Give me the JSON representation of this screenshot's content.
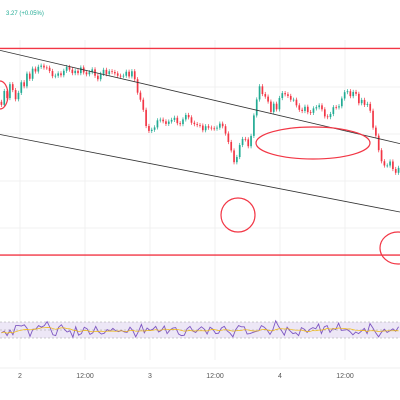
{
  "ticker": {
    "change_text": "3.27 (+0.05%)"
  },
  "colors": {
    "up": "#22ab94",
    "down": "#f23645",
    "channel": "#333333",
    "annotation": "#f23645",
    "rsi_line": "#7e57c2",
    "rsi_band": "#ede7f6",
    "rsi_ma": "#f0b90b",
    "grid": "#f0f0f0"
  },
  "chart_data": [
    {
      "type": "candlestick",
      "title": "",
      "x_tick_labels": [
        "2",
        "12:00",
        "3",
        "12:00",
        "4",
        "12:00"
      ],
      "ylim": [
        0,
        100
      ],
      "y_scale_note": "price axis not visible; values on relative 0-100 scale",
      "candles": [
        [
          73.7,
          72.4
        ],
        [
          72.4,
          78.3
        ],
        [
          78.3,
          75.3
        ],
        [
          75.3,
          81.2
        ],
        [
          81.2,
          78.7
        ],
        [
          78.7,
          74.8
        ],
        [
          74.8,
          77.5
        ],
        [
          77.5,
          82.0
        ],
        [
          82.0,
          80.3
        ],
        [
          80.3,
          85.7
        ],
        [
          85.7,
          83.5
        ],
        [
          83.5,
          87.8
        ],
        [
          87.8,
          86.6
        ],
        [
          86.6,
          88.6
        ],
        [
          88.6,
          89.1
        ],
        [
          89.1,
          88.3
        ],
        [
          88.3,
          88.2
        ],
        [
          88.2,
          86.8
        ],
        [
          86.8,
          84.6
        ],
        [
          84.6,
          84.8
        ],
        [
          84.8,
          85.8
        ],
        [
          85.8,
          85.0
        ],
        [
          85.0,
          86.9
        ],
        [
          86.9,
          88.5
        ],
        [
          88.5,
          87.4
        ],
        [
          87.4,
          85.9
        ],
        [
          85.9,
          86.9
        ],
        [
          86.9,
          85.9
        ],
        [
          85.9,
          88.3
        ],
        [
          88.3,
          86.2
        ],
        [
          86.2,
          85.4
        ],
        [
          85.4,
          86.3
        ],
        [
          86.3,
          87.5
        ],
        [
          87.5,
          84.8
        ],
        [
          84.8,
          83.3
        ],
        [
          83.3,
          85.6
        ],
        [
          85.6,
          87.3
        ],
        [
          87.3,
          85.5
        ],
        [
          85.5,
          86.7
        ],
        [
          86.7,
          86.4
        ],
        [
          86.4,
          85.8
        ],
        [
          85.8,
          84.8
        ],
        [
          84.8,
          84.7
        ],
        [
          84.7,
          84.8
        ],
        [
          84.8,
          86.5
        ],
        [
          86.5,
          84.5
        ],
        [
          84.5,
          86.7
        ],
        [
          86.7,
          83.3
        ],
        [
          83.3,
          77.6
        ],
        [
          77.6,
          74.6
        ],
        [
          74.6,
          70.3
        ],
        [
          70.3,
          63.4
        ],
        [
          63.4,
          61.3
        ],
        [
          61.3,
          61.8
        ],
        [
          61.8,
          62.8
        ],
        [
          62.8,
          65.8
        ],
        [
          65.8,
          66.1
        ],
        [
          66.1,
          65.4
        ],
        [
          65.4,
          64.3
        ],
        [
          64.3,
          65.3
        ],
        [
          65.3,
          66.0
        ],
        [
          66.0,
          66.9
        ],
        [
          66.9,
          64.6
        ],
        [
          64.6,
          64.2
        ],
        [
          64.2,
          66.2
        ],
        [
          66.2,
          68.1
        ],
        [
          68.1,
          67.1
        ],
        [
          67.1,
          64.8
        ],
        [
          64.8,
          64.2
        ],
        [
          64.2,
          63.8
        ],
        [
          63.8,
          63.6
        ],
        [
          63.6,
          61.6
        ],
        [
          61.6,
          63.3
        ],
        [
          63.3,
          62.7
        ],
        [
          62.7,
          62.4
        ],
        [
          62.4,
          62.3
        ],
        [
          62.3,
          62.7
        ],
        [
          62.7,
          64.4
        ],
        [
          64.4,
          63.3
        ],
        [
          63.3,
          60.2
        ],
        [
          60.2,
          56.6
        ],
        [
          56.6,
          53.0
        ],
        [
          53.0,
          48.0
        ],
        [
          48.0,
          50.2
        ],
        [
          50.2,
          55.3
        ],
        [
          55.3,
          57.9
        ],
        [
          57.9,
          57.7
        ],
        [
          57.7,
          54.8
        ],
        [
          54.8,
          59.2
        ],
        [
          59.2,
          67.9
        ],
        [
          67.9,
          74.7
        ],
        [
          74.7,
          80.3
        ],
        [
          80.3,
          77.0
        ],
        [
          77.0,
          75.9
        ],
        [
          75.9,
          73.8
        ],
        [
          73.8,
          69.4
        ],
        [
          69.4,
          72.9
        ],
        [
          72.9,
          70.5
        ],
        [
          70.5,
          75.3
        ],
        [
          75.3,
          77.4
        ],
        [
          77.4,
          76.9
        ],
        [
          76.9,
          76.2
        ],
        [
          76.2,
          74.6
        ],
        [
          74.6,
          74.6
        ],
        [
          74.6,
          72.2
        ],
        [
          72.2,
          70.3
        ],
        [
          70.3,
          69.8
        ],
        [
          69.8,
          71.6
        ],
        [
          71.6,
          69.3
        ],
        [
          69.3,
          69.0
        ],
        [
          69.0,
          70.9
        ],
        [
          70.9,
          71.4
        ],
        [
          71.4,
          72.2
        ],
        [
          72.2,
          70.5
        ],
        [
          70.5,
          67.5
        ],
        [
          67.5,
          67.2
        ],
        [
          67.2,
          68.5
        ],
        [
          68.5,
          71.4
        ],
        [
          71.4,
          71.3
        ],
        [
          71.3,
          71.8
        ],
        [
          71.8,
          75.1
        ],
        [
          75.1,
          77.8
        ],
        [
          77.8,
          78.2
        ],
        [
          78.2,
          76.1
        ],
        [
          76.1,
          77.9
        ],
        [
          77.9,
          77.1
        ],
        [
          77.1,
          73.1
        ],
        [
          73.1,
          74.5
        ],
        [
          74.5,
          72.4
        ],
        [
          72.4,
          72.8
        ],
        [
          72.8,
          69.9
        ],
        [
          69.9,
          62.7
        ],
        [
          62.7,
          59.3
        ],
        [
          59.3,
          53.1
        ],
        [
          53.1,
          48.4
        ],
        [
          48.4,
          46.6
        ],
        [
          46.6,
          46.6
        ],
        [
          46.6,
          48.3
        ],
        [
          48.3,
          45.1
        ],
        [
          45.1,
          43.5
        ],
        [
          43.5,
          45.6
        ]
      ],
      "candle_format": "[open, close]",
      "channel_upper": {
        "start": 95.6,
        "end": 55.9
      },
      "channel_lower": {
        "start": 59.8,
        "end": 26.8
      },
      "horizontal_levels": [
        96.4,
        8.5
      ]
    },
    {
      "type": "line",
      "title": "",
      "ylim": [
        0,
        100
      ],
      "series": [
        {
          "values": [
            43,
            47,
            36,
            50,
            38,
            61,
            61,
            60,
            63,
            54,
            34,
            52,
            52,
            61,
            57,
            61,
            71,
            56,
            38,
            36,
            57,
            63,
            52,
            45,
            48,
            32,
            58,
            37,
            41,
            57,
            53,
            39,
            43,
            59,
            45,
            40,
            42,
            51,
            47,
            54,
            48,
            46,
            49,
            45,
            44,
            57,
            48,
            33,
            47,
            64,
            43,
            55,
            49,
            52,
            59,
            45,
            49,
            60,
            41,
            50,
            55,
            56,
            40,
            36,
            37,
            53,
            59,
            47,
            44,
            52,
            58,
            52,
            40,
            57,
            52,
            41,
            42,
            55,
            59,
            48,
            42,
            33,
            51,
            61,
            58,
            58,
            40,
            41,
            44,
            46,
            48,
            61,
            57,
            50,
            39,
            51,
            73,
            59,
            49,
            37,
            57,
            48,
            41,
            43,
            36,
            56,
            52,
            44,
            52,
            56,
            53,
            65,
            41,
            58,
            61,
            44,
            54,
            51,
            67,
            49,
            50,
            51,
            46,
            38,
            45,
            41,
            47,
            54,
            41,
            66,
            55,
            43,
            33,
            44,
            52,
            44,
            48,
            53,
            47,
            58
          ]
        }
      ]
    }
  ]
}
